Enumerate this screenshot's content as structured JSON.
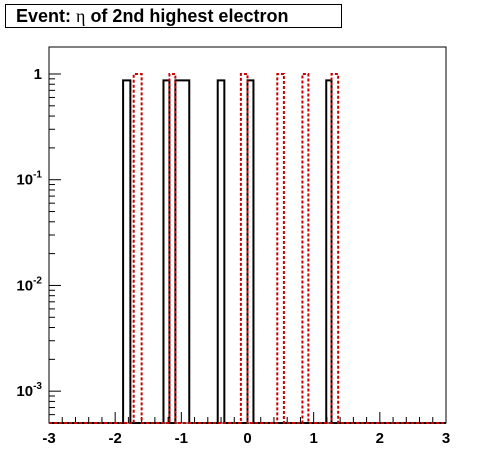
{
  "chart_data": {
    "type": "histogram",
    "title": {
      "prefix": "Event: ",
      "symbol": "η",
      "suffix": " of 2nd highest electron"
    },
    "xlabel": "",
    "ylabel": "",
    "xlim": [
      -3,
      3
    ],
    "ylim": [
      0.0005,
      1.8
    ],
    "y_log": true,
    "grid": false,
    "legend": "none",
    "x_ticks": [
      "-3",
      "-2",
      "-1",
      "0",
      "1",
      "2",
      "3"
    ],
    "y_ticks": [
      {
        "base": "1",
        "exp": ""
      },
      {
        "base": "10",
        "exp": "-1"
      },
      {
        "base": "10",
        "exp": "-2"
      },
      {
        "base": "10",
        "exp": "-3"
      }
    ],
    "series": [
      {
        "style": "solid",
        "color": "#000000",
        "bins": [
          {
            "x0": -1.88,
            "x1": -1.77,
            "y": 0.87
          },
          {
            "x0": -1.27,
            "x1": -1.18,
            "y": 0.87
          },
          {
            "x0": -1.09,
            "x1": -0.88,
            "y": 0.87
          },
          {
            "x0": -0.45,
            "x1": -0.35,
            "y": 0.87
          },
          {
            "x0": 0.0,
            "x1": 0.09,
            "y": 0.87
          },
          {
            "x0": 1.19,
            "x1": 1.27,
            "y": 0.87
          }
        ]
      },
      {
        "style": "dashed",
        "color": "#cc0000",
        "bins": [
          {
            "x0": -1.72,
            "x1": -1.6,
            "y": 1.0
          },
          {
            "x0": -1.18,
            "x1": -1.09,
            "y": 1.0
          },
          {
            "x0": -0.1,
            "x1": 0.0,
            "y": 1.0
          },
          {
            "x0": 0.45,
            "x1": 0.55,
            "y": 1.0
          },
          {
            "x0": 0.83,
            "x1": 0.92,
            "y": 1.0
          },
          {
            "x0": 1.27,
            "x1": 1.37,
            "y": 1.0
          }
        ]
      }
    ]
  }
}
